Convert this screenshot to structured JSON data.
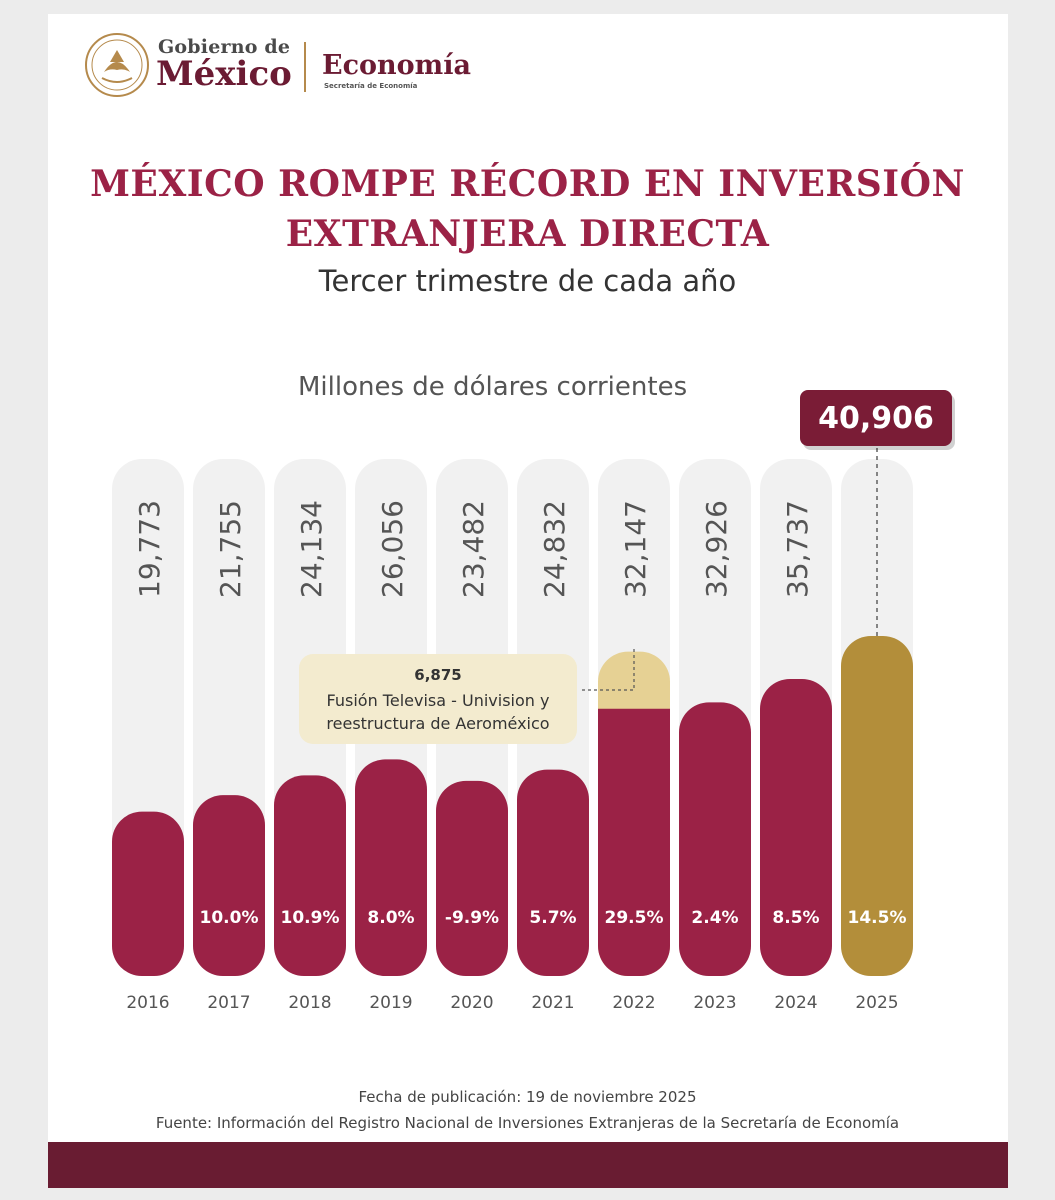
{
  "header": {
    "logo_line1": "Gobierno de",
    "logo_line2": "México",
    "logo_dept": "Economía",
    "logo_dept_sub": "Secretaría de Economía"
  },
  "title_line1": "MÉXICO ROMPE RÉCORD EN INVERSIÓN",
  "title_line2": "EXTRANJERA DIRECTA",
  "subtitle": "Tercer trimestre de cada año",
  "unit_label": "Millones de dólares corrientes",
  "chart_data": {
    "type": "bar",
    "categories": [
      "2016",
      "2017",
      "2018",
      "2019",
      "2020",
      "2021",
      "2022",
      "2023",
      "2024",
      "2025"
    ],
    "values": [
      19773,
      21755,
      24134,
      26056,
      23482,
      24832,
      32147,
      32926,
      35737,
      40906
    ],
    "value_labels": [
      "19,773",
      "21,755",
      "24,134",
      "26,056",
      "23,482",
      "24,832",
      "32,147",
      "32,926",
      "35,737",
      "40,906"
    ],
    "growth_labels": [
      "",
      "10.0%",
      "10.9%",
      "8.0%",
      "-9.9%",
      "5.7%",
      "29.5%",
      "2.4%",
      "8.5%",
      "14.5%"
    ],
    "stacked_extra": {
      "category": "2022",
      "value": 6875,
      "label": "6,875"
    },
    "annotation": {
      "value_label": "6,875",
      "line1": "Fusión Televisa - Univision y",
      "line2": "reestructura de Aeroméxico"
    },
    "highlight": {
      "category": "2025",
      "label": "40,906"
    },
    "colors": {
      "bar": "#9b2246",
      "highlight": "#b38e3a",
      "extra": "#e6d194",
      "track": "#f1f1f1",
      "label_box": "#7a1c36"
    }
  },
  "footer": {
    "published": "Fecha de publicación: 19 de noviembre 2025",
    "source": "Fuente: Información del Registro Nacional de Inversiones Extranjeras de la Secretaría de Economía"
  }
}
